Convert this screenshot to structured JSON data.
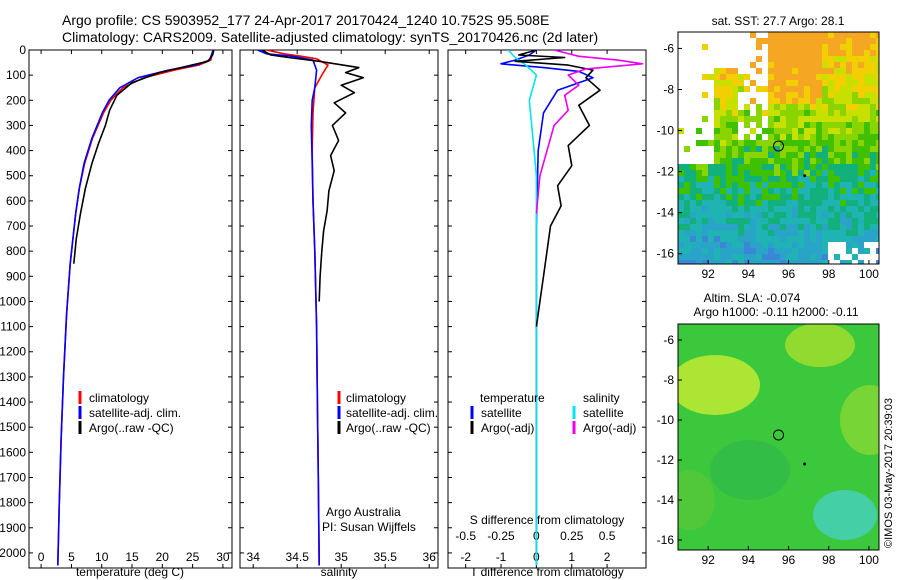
{
  "header": {
    "line1": "Argo profile: CS 5903952_177 24-Apr-2017 20170424_1240 10.752S 95.508E",
    "line2": "Climatology: CARS2009. Satellite-adjusted climatology: synTS_20170426.nc (2d later)"
  },
  "colors": {
    "climatology": "#ff0000",
    "satellite": "#0000ff",
    "argo": "#000000",
    "sat_salinity": "#00e5ee",
    "argo_salinity_diff": "#ee00ee"
  },
  "chart_data": [
    {
      "type": "line",
      "panel": "temperature",
      "xlabel": "temperature (deg C)",
      "ylabel": "",
      "xlim": [
        -2,
        31.5
      ],
      "ylim": [
        2060,
        0
      ],
      "xticks": [
        0,
        5,
        10,
        15,
        20,
        25,
        30
      ],
      "yticks": [
        0,
        100,
        200,
        300,
        400,
        500,
        600,
        700,
        800,
        900,
        1000,
        1100,
        1200,
        1300,
        1400,
        1500,
        1600,
        1700,
        1800,
        1900,
        2000
      ],
      "legend": [
        "climatology",
        "satellite-adj. clim.",
        "Argo(..raw -QC)"
      ],
      "legend_position": "lower-center",
      "series": [
        {
          "name": "climatology",
          "color": "#ff0000",
          "x": [
            28.4,
            28.0,
            26.0,
            22.0,
            17.0,
            13.5,
            11.5,
            10.3,
            8.5,
            7.2,
            6.3,
            5.7,
            4.8,
            4.2,
            3.7,
            3.3,
            3.0,
            2.75
          ],
          "y": [
            0,
            40,
            60,
            80,
            110,
            150,
            200,
            250,
            350,
            450,
            550,
            650,
            850,
            1050,
            1300,
            1550,
            1800,
            2050
          ]
        },
        {
          "name": "satellite-adj. clim.",
          "color": "#0000ff",
          "x": [
            28.4,
            27.8,
            25.5,
            21.0,
            16.0,
            13.0,
            11.2,
            10.1,
            8.4,
            7.1,
            6.3,
            5.7,
            4.8,
            4.2,
            3.7,
            3.3,
            3.0,
            2.75
          ],
          "y": [
            0,
            40,
            60,
            80,
            110,
            150,
            200,
            250,
            350,
            450,
            550,
            650,
            850,
            1050,
            1300,
            1550,
            1800,
            2050
          ]
        },
        {
          "name": "Argo(..raw -QC)",
          "color": "#000000",
          "x": [
            28.5,
            28.3,
            27.5,
            24.0,
            19.5,
            15.0,
            12.5,
            11.3,
            10.6,
            9.5,
            8.4,
            7.3,
            6.5,
            5.8,
            5.4
          ],
          "y": [
            0,
            20,
            45,
            65,
            90,
            130,
            180,
            240,
            300,
            370,
            450,
            550,
            650,
            750,
            850
          ]
        }
      ]
    },
    {
      "type": "line",
      "panel": "salinity",
      "xlabel": "salinity",
      "xlim": [
        33.85,
        36.1
      ],
      "ylim": [
        2060,
        0
      ],
      "xticks": [
        34,
        34.5,
        35,
        35.5,
        36
      ],
      "legend": [
        "climatology",
        "satellite-adj. clim.",
        "Argo(..raw -QC)"
      ],
      "legend_position": "lower-center",
      "annotations": [
        "Argo Australia",
        "PI: Susan Wijffels"
      ],
      "series": [
        {
          "name": "climatology",
          "color": "#ff0000",
          "x": [
            34.15,
            34.35,
            34.55,
            34.72,
            34.85,
            34.78,
            34.7,
            34.68,
            34.67,
            34.68,
            34.7,
            34.72,
            34.73,
            34.74,
            34.75
          ],
          "y": [
            0,
            15,
            25,
            35,
            60,
            100,
            150,
            250,
            400,
            600,
            800,
            1100,
            1400,
            1700,
            2050
          ]
        },
        {
          "name": "satellite-adj. clim.",
          "color": "#0000ff",
          "x": [
            34.05,
            34.15,
            34.45,
            34.68,
            34.72,
            34.7,
            34.67,
            34.66,
            34.67,
            34.68,
            34.7,
            34.72,
            34.73,
            34.74,
            34.75
          ],
          "y": [
            0,
            15,
            25,
            40,
            80,
            150,
            200,
            300,
            450,
            600,
            800,
            1100,
            1400,
            1700,
            2050
          ]
        },
        {
          "name": "Argo(..raw -QC)",
          "color": "#000000",
          "x": [
            34.1,
            34.2,
            34.4,
            34.75,
            35.2,
            35.05,
            35.25,
            35.0,
            35.15,
            34.92,
            35.05,
            34.9,
            34.97,
            34.88,
            34.92,
            34.86,
            34.84,
            34.8,
            34.78,
            34.76,
            34.75
          ],
          "y": [
            0,
            20,
            30,
            45,
            70,
            90,
            110,
            140,
            170,
            210,
            250,
            300,
            360,
            420,
            480,
            560,
            640,
            720,
            800,
            900,
            1000
          ]
        }
      ]
    },
    {
      "type": "line",
      "panel": "difference",
      "xlabel": "T difference from climatology",
      "xlabel_top": "S difference from climatology",
      "xlim": [
        -2.5,
        3.1
      ],
      "ylim": [
        2060,
        0
      ],
      "xticks": [
        -2,
        -1,
        0,
        1,
        2
      ],
      "xticks_s_labels": [
        "-0.5",
        "-0.25",
        "0",
        "0.25",
        "0.5"
      ],
      "legend_left_title": "temperature",
      "legend_right_title": "salinity",
      "legend_left": [
        "satellite",
        "Argo(-adj)"
      ],
      "legend_right": [
        "satellite",
        "Argo(-adj)"
      ],
      "series": [
        {
          "name": "satellite",
          "quantity": "temperature",
          "color": "#0000ff",
          "x": [
            0.0,
            -0.2,
            -0.6,
            -1.0,
            0.2,
            1.2,
            1.6,
            0.6,
            0.2,
            0.05,
            0.0,
            0.0
          ],
          "y": [
            0,
            20,
            40,
            55,
            70,
            85,
            110,
            160,
            250,
            400,
            700,
            2050
          ]
        },
        {
          "name": "satellite",
          "quantity": "salinity",
          "color": "#00e5ee",
          "x": [
            -0.8,
            -0.6,
            -0.3,
            0.0,
            -0.2,
            -0.1,
            0.0,
            0.0,
            0.0
          ],
          "y": [
            0,
            30,
            60,
            100,
            200,
            350,
            500,
            800,
            2050
          ]
        },
        {
          "name": "Argo(-adj)",
          "quantity": "temperature",
          "color": "#000000",
          "x": [
            0.0,
            -0.5,
            0.8,
            -0.6,
            0.9,
            1.6,
            1.4,
            1.8,
            1.2,
            1.5,
            0.9,
            1.0,
            0.6,
            0.7,
            0.4,
            0.3,
            0.2,
            0.1,
            0.0
          ],
          "y": [
            0,
            20,
            30,
            45,
            60,
            80,
            110,
            160,
            220,
            300,
            380,
            460,
            540,
            620,
            700,
            800,
            900,
            1000,
            1100
          ]
        },
        {
          "name": "Argo(-adj)",
          "quantity": "salinity",
          "color": "#ee00ee",
          "x": [
            0.5,
            1.2,
            2.3,
            3.0,
            1.4,
            0.9,
            1.2,
            0.8,
            0.9,
            0.5,
            0.3,
            0.1,
            0.0
          ],
          "y": [
            0,
            25,
            40,
            55,
            75,
            100,
            140,
            180,
            240,
            300,
            400,
            500,
            650
          ]
        }
      ]
    },
    {
      "type": "heatmap",
      "panel": "sst-map",
      "title": "sat. SST: 27.7 Argo: 28.1",
      "xlim": [
        90.5,
        100.5
      ],
      "ylim": [
        -16.5,
        -5.2
      ],
      "xticks": [
        92,
        94,
        96,
        98,
        100
      ],
      "yticks": [
        -6,
        -8,
        -10,
        -12,
        -14,
        -16
      ],
      "markers": [
        {
          "x": 95.5,
          "y": -10.75
        },
        {
          "x": 96.8,
          "y": -12.2
        }
      ]
    },
    {
      "type": "heatmap",
      "panel": "sla-map",
      "title": "Altim. SLA: -0.074",
      "subtitle": "Argo h1000: -0.11 h2000: -0.11",
      "xlim": [
        90.5,
        100.5
      ],
      "ylim": [
        -16.5,
        -5.2
      ],
      "xticks": [
        92,
        94,
        96,
        98,
        100
      ],
      "yticks": [
        -6,
        -8,
        -10,
        -12,
        -14,
        -16
      ],
      "markers": [
        {
          "x": 95.5,
          "y": -10.75
        },
        {
          "x": 96.8,
          "y": -12.2
        }
      ]
    }
  ],
  "footer": {
    "imos_stamp": "©IMOS 03-May-2017 20:39:03"
  }
}
